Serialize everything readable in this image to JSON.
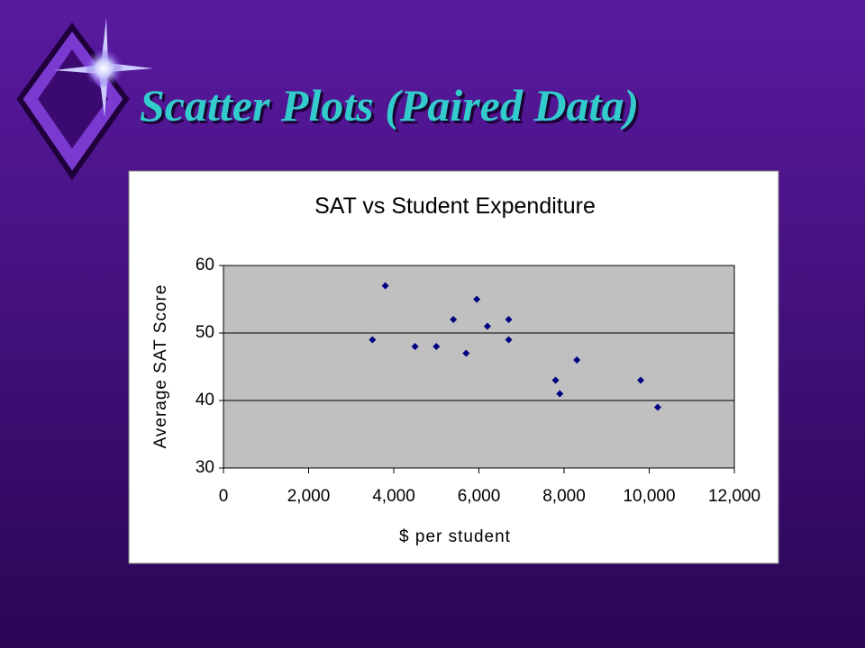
{
  "slide_title": "Scatter Plots (Paired Data)",
  "chart_data": {
    "type": "scatter",
    "title": "SAT vs Student Expenditure",
    "x_label": "$ per student",
    "y_label": "Average SAT Score",
    "x": [
      3500,
      3800,
      4500,
      5000,
      5400,
      5700,
      5950,
      6200,
      6700,
      6700,
      7800,
      7900,
      8300,
      9800,
      10200
    ],
    "values": [
      49,
      57,
      48,
      48,
      52,
      47,
      55,
      51,
      52,
      49,
      43,
      41,
      46,
      43,
      39
    ],
    "color": "#000080",
    "xlim": [
      0,
      12000
    ],
    "xticks": [
      0,
      {
        "value": 2000,
        "label": "2,000"
      },
      {
        "value": 4000,
        "label": "4,000"
      },
      {
        "value": 6000,
        "label": "6,000"
      },
      {
        "value": 8000,
        "label": "8,000"
      },
      {
        "value": 10000,
        "label": "10,000"
      },
      {
        "value": 12000,
        "label": "12,000"
      }
    ],
    "ylim": [
      30,
      60
    ],
    "yticks": [
      30,
      40,
      50,
      60
    ],
    "grid": true
  }
}
